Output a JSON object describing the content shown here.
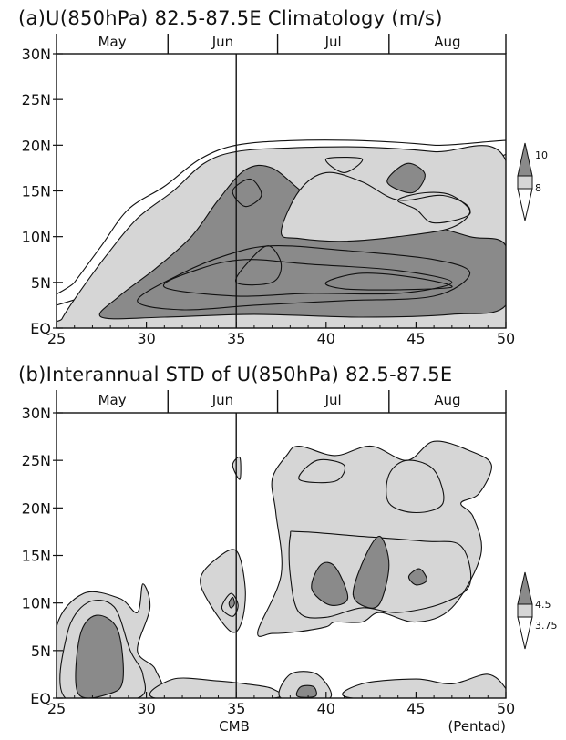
{
  "colors": {
    "light": "#d6d6d6",
    "dark": "#8a8a8a",
    "line": "#111111",
    "bg": "#ffffff"
  },
  "chart_data": [
    {
      "type": "heatmap",
      "title": "(a)U(850hPa)  82.5-87.5E  Climatology  (m/s)",
      "xlabel": "",
      "ylabel": "",
      "x_ticks": [
        "25",
        "30",
        "35",
        "40",
        "45",
        "50"
      ],
      "y_ticks": [
        "EQ",
        "5N",
        "10N",
        "15N",
        "20N",
        "25N",
        "30N"
      ],
      "xlim": [
        25,
        50
      ],
      "ylim": [
        0,
        30
      ],
      "months": [
        {
          "label": "May",
          "start": 25.0,
          "end": 31.2
        },
        {
          "label": "Jun",
          "start": 31.2,
          "end": 37.3
        },
        {
          "label": "Jul",
          "start": 37.3,
          "end": 43.5
        },
        {
          "label": "Aug",
          "start": 43.5,
          "end": 50.0
        }
      ],
      "reference_line_x": 35,
      "legend": {
        "levels": [
          "10",
          "8"
        ],
        "placement": "right"
      },
      "contours": [
        {
          "fill": "none",
          "points": [
            [
              25,
              2.5
            ],
            [
              26,
              5
            ],
            [
              27.5,
              9
            ],
            [
              29,
              13
            ],
            [
              31,
              15.5
            ],
            [
              33,
              18.5
            ],
            [
              35,
              20
            ],
            [
              38,
              20.5
            ],
            [
              42,
              20.5
            ],
            [
              46,
              20
            ],
            [
              50,
              19
            ]
          ]
        },
        {
          "fill": "light",
          "points": [
            [
              25.3,
              1
            ],
            [
              26.3,
              4
            ],
            [
              27.8,
              8
            ],
            [
              29.5,
              12
            ],
            [
              31.5,
              15
            ],
            [
              33.2,
              18
            ],
            [
              35,
              19.3
            ],
            [
              38,
              19.7
            ],
            [
              42,
              19.8
            ],
            [
              46,
              19.3
            ],
            [
              50,
              18.3
            ],
            [
              50,
              0
            ],
            [
              25.3,
              0
            ]
          ]
        },
        {
          "fill": "dark",
          "points": [
            [
              27.5,
              1.2
            ],
            [
              28.5,
              3.5
            ],
            [
              30.5,
              6.5
            ],
            [
              32.5,
              10
            ],
            [
              34,
              14
            ],
            [
              35.5,
              17.3
            ],
            [
              37,
              17.5
            ],
            [
              39,
              14.5
            ],
            [
              41,
              13.5
            ],
            [
              43,
              13.3
            ],
            [
              45.5,
              11.5
            ],
            [
              48,
              10
            ],
            [
              50,
              9
            ],
            [
              50,
              2.5
            ],
            [
              47,
              1.5
            ],
            [
              42,
              1.2
            ],
            [
              36,
              1.5
            ],
            [
              31,
              1.2
            ]
          ]
        },
        {
          "fill": "light",
          "points": [
            [
              37.5,
              10.5
            ],
            [
              38.5,
              15
            ],
            [
              40,
              17
            ],
            [
              42,
              16
            ],
            [
              44,
              14
            ],
            [
              46.5,
              14.5
            ],
            [
              48,
              13
            ],
            [
              47,
              11
            ],
            [
              44,
              10
            ],
            [
              41,
              9.5
            ],
            [
              38.5,
              9.8
            ]
          ]
        },
        {
          "fill": "dark",
          "points": [
            [
              43.4,
              16
            ],
            [
              44.5,
              18
            ],
            [
              45.5,
              16.8
            ],
            [
              44.8,
              14.8
            ]
          ]
        },
        {
          "fill": "dark",
          "points": [
            [
              34.8,
              15
            ],
            [
              35.8,
              16.3
            ],
            [
              36.4,
              14.5
            ],
            [
              35.5,
              13.3
            ]
          ]
        },
        {
          "fill": "none",
          "points": [
            [
              29.5,
              3
            ],
            [
              32,
              6
            ],
            [
              34.5,
              8
            ],
            [
              37,
              9
            ],
            [
              41,
              8.5
            ],
            [
              46,
              7.5
            ],
            [
              48,
              6
            ],
            [
              46,
              3.5
            ],
            [
              41,
              3
            ],
            [
              36,
              2.5
            ],
            [
              32,
              2
            ]
          ]
        },
        {
          "fill": "none",
          "points": [
            [
              31,
              4.5
            ],
            [
              33,
              6.5
            ],
            [
              35.5,
              7.5
            ],
            [
              39,
              7
            ],
            [
              44,
              6.3
            ],
            [
              47,
              5
            ],
            [
              44,
              3.8
            ],
            [
              39,
              3.8
            ],
            [
              35,
              3.5
            ]
          ]
        },
        {
          "fill": "none",
          "points": [
            [
              40,
              5
            ],
            [
              42,
              6
            ],
            [
              45,
              5.5
            ],
            [
              47,
              4.5
            ],
            [
              44,
              4.2
            ],
            [
              41,
              4.3
            ]
          ]
        },
        {
          "fill": "none",
          "points": [
            [
              35,
              5
            ],
            [
              35.8,
              7.5
            ],
            [
              36.8,
              9
            ],
            [
              37.5,
              7
            ],
            [
              37,
              5
            ]
          ]
        },
        {
          "fill": "none",
          "points": [
            [
              42,
              18.5
            ],
            [
              41,
              17
            ],
            [
              40,
              18.5
            ]
          ]
        },
        {
          "fill": "none",
          "points": [
            [
              44,
              14
            ],
            [
              45,
              13
            ],
            [
              46,
              11.5
            ],
            [
              48,
              12.5
            ],
            [
              47,
              14.5
            ],
            [
              45.5,
              14.8
            ]
          ]
        }
      ]
    },
    {
      "type": "heatmap",
      "title": "(b)Interannual  STD  of  U(850hPa)  82.5-87.5E",
      "xlabel": "CMB",
      "ylabel": "(Pentad)",
      "x_ticks": [
        "25",
        "30",
        "35",
        "40",
        "45",
        "50"
      ],
      "y_ticks": [
        "EQ",
        "5N",
        "10N",
        "15N",
        "20N",
        "25N",
        "30N"
      ],
      "xlim": [
        25,
        50
      ],
      "ylim": [
        0,
        30
      ],
      "months": [
        {
          "label": "May",
          "start": 25.0,
          "end": 31.2
        },
        {
          "label": "Jun",
          "start": 31.2,
          "end": 37.3
        },
        {
          "label": "Jul",
          "start": 37.3,
          "end": 43.5
        },
        {
          "label": "Aug",
          "start": 43.5,
          "end": 50.0
        }
      ],
      "reference_line_x": 35,
      "legend": {
        "levels": [
          "4.5",
          "3.75"
        ],
        "placement": "right"
      },
      "contours": [
        {
          "fill": "light",
          "points": [
            [
              25,
              0
            ],
            [
              25,
              7.5
            ],
            [
              26.5,
              11
            ],
            [
              28.5,
              10.5
            ],
            [
              29.5,
              9
            ],
            [
              29.8,
              12
            ],
            [
              30.2,
              9.5
            ],
            [
              29.5,
              5
            ],
            [
              30.5,
              3
            ],
            [
              30.5,
              0
            ]
          ]
        },
        {
          "fill": "none",
          "points": [
            [
              25.5,
              0
            ],
            [
              25.6,
              6.8
            ],
            [
              26.7,
              10
            ],
            [
              28.2,
              9.6
            ],
            [
              29.1,
              5
            ],
            [
              29.8,
              2.5
            ],
            [
              29.5,
              0
            ]
          ]
        },
        {
          "fill": "dark",
          "points": [
            [
              26.2,
              0.5
            ],
            [
              26.3,
              6.5
            ],
            [
              27.2,
              8.7
            ],
            [
              28.4,
              7.2
            ],
            [
              28.7,
              2
            ],
            [
              28,
              0.5
            ]
          ]
        },
        {
          "fill": "light",
          "points": [
            [
              30.5,
              0
            ],
            [
              31.5,
              2
            ],
            [
              34,
              1.8
            ],
            [
              35.5,
              1.5
            ],
            [
              37,
              1
            ],
            [
              37,
              0
            ]
          ]
        },
        {
          "fill": "light",
          "points": [
            [
              33,
              12.5
            ],
            [
              33.8,
              14.5
            ],
            [
              35,
              15.5
            ],
            [
              35.5,
              11.5
            ],
            [
              35.3,
              8
            ],
            [
              34.7,
              7
            ],
            [
              33.5,
              10
            ]
          ]
        },
        {
          "fill": "none",
          "points": [
            [
              34.2,
              9.5
            ],
            [
              34.7,
              11
            ],
            [
              35.1,
              9.8
            ],
            [
              34.8,
              8.6
            ]
          ]
        },
        {
          "fill": "dark",
          "points": [
            [
              34.6,
              10
            ],
            [
              34.8,
              10.6
            ],
            [
              34.9,
              9.9
            ],
            [
              34.7,
              9.5
            ]
          ]
        },
        {
          "fill": "light",
          "points": [
            [
              34.8,
              24.5
            ],
            [
              35.2,
              25.3
            ],
            [
              35.2,
              23
            ]
          ]
        },
        {
          "fill": "light",
          "points": [
            [
              36.2,
              7
            ],
            [
              37.5,
              13
            ],
            [
              37.2,
              19.5
            ],
            [
              37,
              23
            ],
            [
              37.8,
              25.5
            ],
            [
              38.5,
              26.5
            ],
            [
              40.5,
              25.5
            ],
            [
              42.5,
              26.5
            ],
            [
              44.5,
              25
            ],
            [
              46,
              27
            ],
            [
              48,
              26
            ],
            [
              49.2,
              24.5
            ],
            [
              48.5,
              21.5
            ],
            [
              47.5,
              20.5
            ],
            [
              48.2,
              19
            ],
            [
              48.6,
              15
            ],
            [
              47,
              9.5
            ],
            [
              45,
              8
            ],
            [
              43,
              9
            ],
            [
              42,
              8
            ],
            [
              40.5,
              8
            ],
            [
              40,
              7.5
            ],
            [
              38.5,
              7
            ],
            [
              37,
              6.8
            ]
          ]
        },
        {
          "fill": "none",
          "points": [
            [
              38,
              17
            ],
            [
              38.5,
              17.5
            ],
            [
              42,
              17
            ],
            [
              45.5,
              16.5
            ],
            [
              47.5,
              16
            ],
            [
              48,
              12
            ],
            [
              46.5,
              10
            ],
            [
              44,
              9
            ],
            [
              42,
              9.5
            ],
            [
              40,
              8.5
            ],
            [
              38.5,
              9
            ],
            [
              38,
              13
            ]
          ]
        },
        {
          "fill": "none",
          "points": [
            [
              38.5,
              23
            ],
            [
              39.5,
              25
            ],
            [
              41,
              24.5
            ],
            [
              40.5,
              22.8
            ]
          ]
        },
        {
          "fill": "none",
          "points": [
            [
              43.5,
              23.5
            ],
            [
              44.5,
              25
            ],
            [
              46,
              24
            ],
            [
              46.5,
              20.5
            ],
            [
              45,
              19.5
            ],
            [
              43.5,
              20.5
            ]
          ]
        },
        {
          "fill": "dark",
          "points": [
            [
              39.2,
              11.5
            ],
            [
              39.7,
              14
            ],
            [
              40.5,
              13.8
            ],
            [
              41.2,
              10.5
            ],
            [
              40.2,
              9.8
            ]
          ]
        },
        {
          "fill": "dark",
          "points": [
            [
              41.5,
              11
            ],
            [
              42.2,
              15
            ],
            [
              43,
              17
            ],
            [
              43.5,
              14
            ],
            [
              43,
              10
            ],
            [
              42.2,
              9.6
            ]
          ]
        },
        {
          "fill": "dark",
          "points": [
            [
              44.6,
              12.8
            ],
            [
              45.2,
              13.6
            ],
            [
              45.6,
              12.4
            ],
            [
              45,
              11.9
            ]
          ]
        },
        {
          "fill": "light",
          "points": [
            [
              37.5,
              0
            ],
            [
              38,
              2.5
            ],
            [
              39.5,
              2.5
            ],
            [
              40.2,
              0
            ]
          ]
        },
        {
          "fill": "light",
          "points": [
            [
              41.5,
              0
            ],
            [
              42,
              1.5
            ],
            [
              45,
              2
            ],
            [
              47,
              1.5
            ],
            [
              49,
              2.5
            ],
            [
              50,
              1
            ],
            [
              50,
              0
            ]
          ]
        },
        {
          "fill": "dark",
          "points": [
            [
              38.4,
              0.2
            ],
            [
              38.6,
              1.2
            ],
            [
              39.3,
              1.2
            ],
            [
              39.4,
              0.2
            ]
          ]
        }
      ]
    }
  ],
  "legend_a": {
    "high": "10",
    "low": "8"
  },
  "legend_b": {
    "high": "4.5",
    "low": "3.75"
  }
}
